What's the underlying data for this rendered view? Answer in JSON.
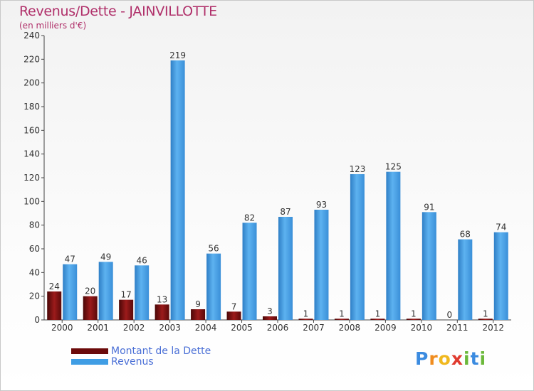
{
  "header": {
    "title": "Revenus/Dette - JAINVILLOTTE",
    "subtitle": "(en milliers d'€)"
  },
  "chart_data": {
    "type": "bar",
    "title": "Revenus/Dette - JAINVILLOTTE",
    "ylabel": "(en milliers d'€)",
    "xlabel": "",
    "categories": [
      "2000",
      "2001",
      "2002",
      "2003",
      "2004",
      "2005",
      "2006",
      "2007",
      "2008",
      "2009",
      "2010",
      "2011",
      "2012"
    ],
    "series": [
      {
        "name": "Montant de la Dette",
        "values": [
          24,
          20,
          17,
          13,
          9,
          7,
          3,
          1,
          1,
          1,
          1,
          0,
          1
        ],
        "color": "#8b1414"
      },
      {
        "name": "Revenus",
        "values": [
          47,
          49,
          46,
          219,
          56,
          82,
          87,
          93,
          123,
          125,
          91,
          68,
          74
        ],
        "color": "#4aa3e6"
      }
    ],
    "ylim": [
      0,
      240
    ],
    "yticks": [
      0,
      20,
      40,
      60,
      80,
      100,
      120,
      140,
      160,
      180,
      200,
      220,
      240
    ],
    "grid": false,
    "legend": "bottom-left"
  },
  "legend": {
    "items": [
      {
        "label": "Montant de la Dette",
        "color": "#6b0a0a"
      },
      {
        "label": "Revenus",
        "color": "#3f9de4"
      }
    ]
  },
  "logo": {
    "letters": [
      "P",
      "r",
      "o",
      "x",
      "i",
      "t",
      "i"
    ],
    "colors": [
      "#3b8be0",
      "#f08c1e",
      "#f0b81e",
      "#e03a2e",
      "#6bb83a",
      "#3b8be0",
      "#6bb83a"
    ]
  }
}
